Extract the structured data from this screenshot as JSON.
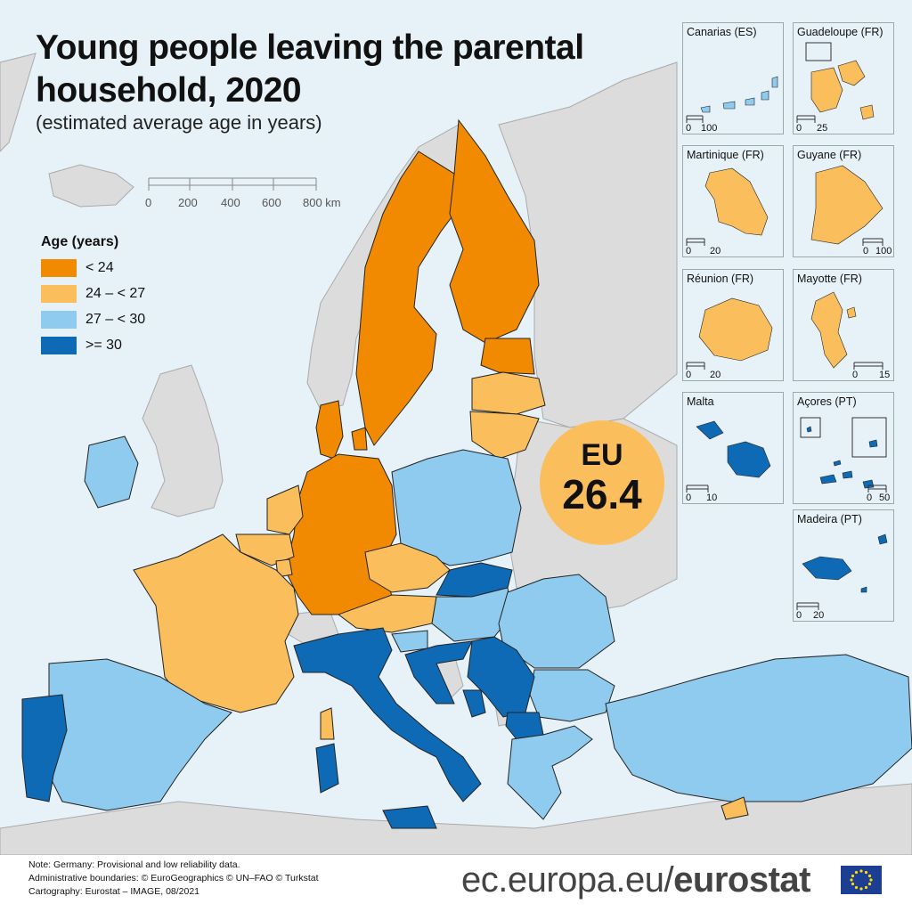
{
  "title_line1": "Young people leaving the parental",
  "title_line2": "household, 2020",
  "subtitle": "(estimated average age in years)",
  "scale_bar": {
    "ticks": [
      "0",
      "200",
      "400",
      "600",
      "800 km"
    ]
  },
  "legend": {
    "title": "Age (years)",
    "items": [
      {
        "label": "< 24",
        "color": "#f18a00"
      },
      {
        "label": "24 – < 27",
        "color": "#fbbe5c"
      },
      {
        "label": "27 – < 30",
        "color": "#8ecbee"
      },
      {
        "label": ">= 30",
        "color": "#0f6ab6"
      }
    ]
  },
  "eu_badge": {
    "label": "EU",
    "value": "26.4"
  },
  "insets": [
    {
      "name": "Canarias (ES)",
      "scale": [
        "0",
        "100"
      ],
      "color": "#8ecbee"
    },
    {
      "name": "Guadeloupe (FR)",
      "scale": [
        "0",
        "25"
      ],
      "color": "#fbbe5c"
    },
    {
      "name": "Martinique (FR)",
      "scale": [
        "0",
        "20"
      ],
      "color": "#fbbe5c"
    },
    {
      "name": "Guyane (FR)",
      "scale": [
        "0",
        "100"
      ],
      "color": "#fbbe5c"
    },
    {
      "name": "Réunion (FR)",
      "scale": [
        "0",
        "20"
      ],
      "color": "#fbbe5c"
    },
    {
      "name": "Mayotte (FR)",
      "scale": [
        "0",
        "15"
      ],
      "color": "#fbbe5c"
    },
    {
      "name": "Malta",
      "scale": [
        "0",
        "10"
      ],
      "color": "#0f6ab6"
    },
    {
      "name": "Açores (PT)",
      "scale": [
        "0",
        "50"
      ],
      "color": "#0f6ab6"
    },
    {
      "name": "Madeira (PT)",
      "scale": [
        "0",
        "20"
      ],
      "color": "#0f6ab6"
    }
  ],
  "notes": [
    "Note: Germany: Provisional and low reliability data.",
    "Administrative boundaries: © EuroGeographics © UN–FAO © Turkstat",
    "Cartography: Eurostat – IMAGE, 08/2021"
  ],
  "brand": {
    "prefix": "ec.europa.eu/",
    "name": "eurostat"
  },
  "colors": {
    "sea": "#e6f2f7",
    "non_eu_land": "#dcdcdc",
    "border": "#222222"
  }
}
